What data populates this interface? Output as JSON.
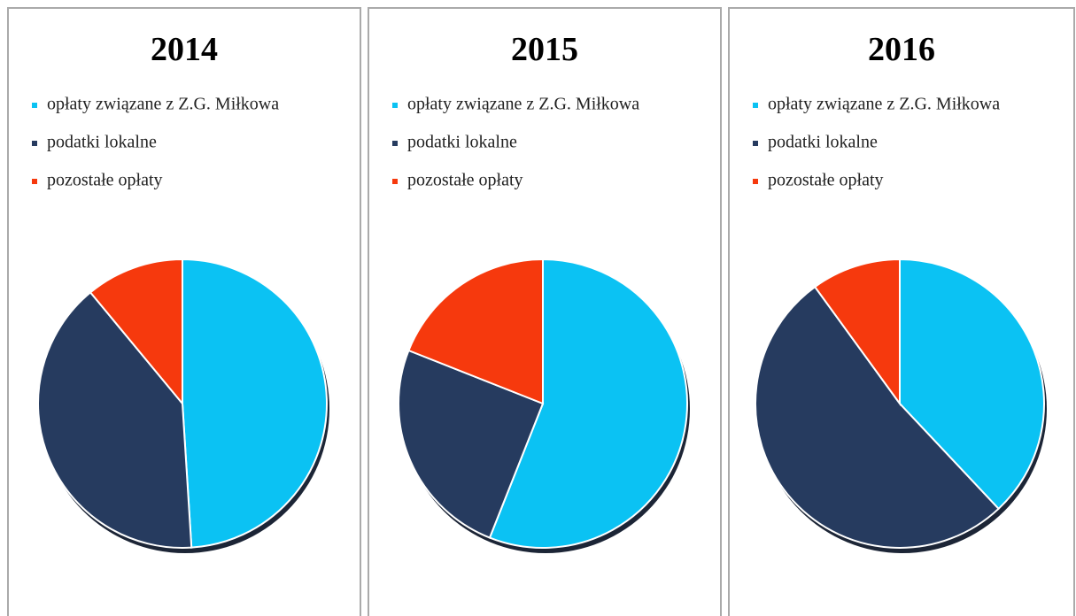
{
  "chart_data": [
    {
      "type": "pie",
      "title": "2014",
      "categories": [
        "opłaty związane z Z.G. Miłkowa",
        "podatki lokalne",
        "pozostałe opłaty"
      ],
      "values": [
        49,
        40,
        11
      ],
      "colors": [
        "#0bc2f3",
        "#263b5f",
        "#f6390d"
      ]
    },
    {
      "type": "pie",
      "title": "2015",
      "categories": [
        "opłaty związane z Z.G. Miłkowa",
        "podatki lokalne",
        "pozostałe opłaty"
      ],
      "values": [
        56,
        25,
        19
      ],
      "colors": [
        "#0bc2f3",
        "#263b5f",
        "#f6390d"
      ]
    },
    {
      "type": "pie",
      "title": "2016",
      "categories": [
        "opłaty związane z Z.G. Miłkowa",
        "podatki lokalne",
        "pozostałe opłaty"
      ],
      "values": [
        38,
        52,
        10
      ],
      "colors": [
        "#0bc2f3",
        "#263b5f",
        "#f6390d"
      ]
    }
  ]
}
